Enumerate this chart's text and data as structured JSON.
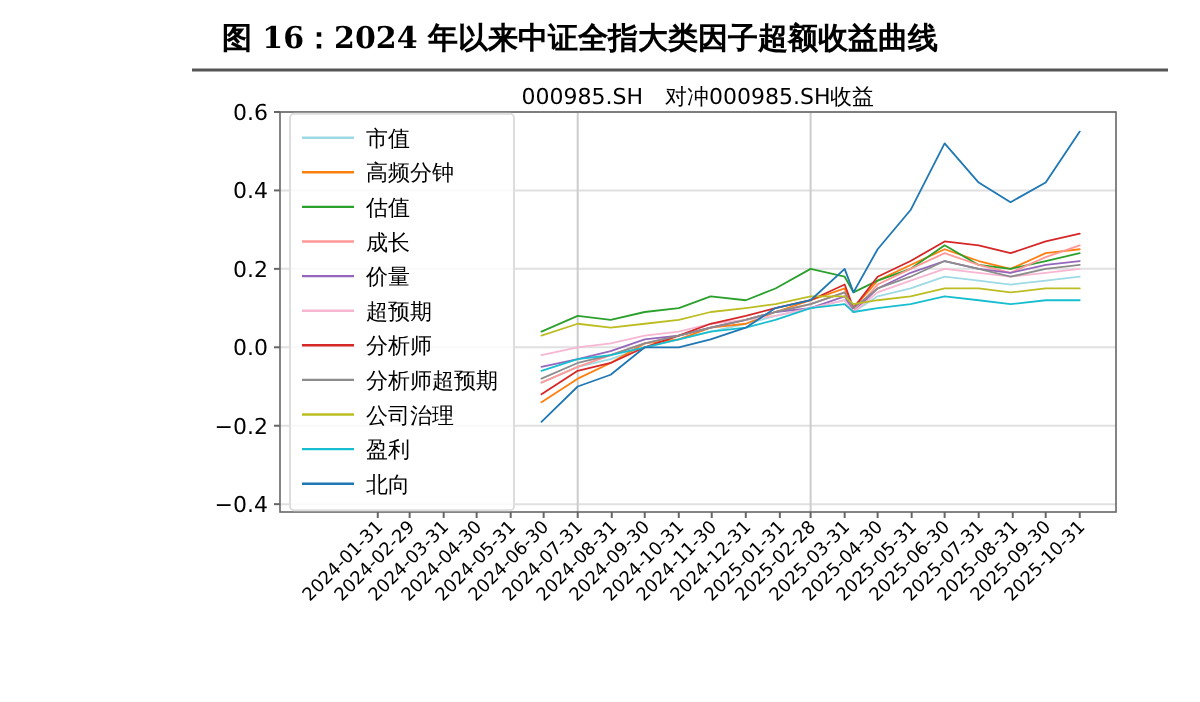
{
  "chart_data": {
    "type": "line",
    "title": "图 16：2024 年以来中证全指大类因子超额收益曲线",
    "subtitle": "000985.SH　对冲000985.SH收益",
    "x": [
      "2024-06-28",
      "2024-07-31",
      "2024-08-30",
      "2024-09-30",
      "2024-10-31",
      "2024-11-29",
      "2024-12-31",
      "2025-01-27",
      "2025-02-28",
      "2025-03-31",
      "2025-04-08",
      "2025-04-30",
      "2025-05-30",
      "2025-06-30",
      "2025-07-31",
      "2025-08-29",
      "2025-09-30",
      "2025-10-31"
    ],
    "xlim": [
      "2023-11-03",
      "2025-12-03"
    ],
    "xticks": [
      "2024-01-31",
      "2024-02-29",
      "2024-03-31",
      "2024-04-30",
      "2024-05-31",
      "2024-06-30",
      "2024-07-31",
      "2024-08-31",
      "2024-09-30",
      "2024-10-31",
      "2024-11-30",
      "2024-12-31",
      "2025-01-31",
      "2025-02-28",
      "2025-03-31",
      "2025-04-30",
      "2025-05-31",
      "2025-06-30",
      "2025-07-31",
      "2025-08-31",
      "2025-09-30",
      "2025-10-31"
    ],
    "ylim": [
      -0.42,
      0.6
    ],
    "yticks": [
      {
        "value": -0.4,
        "label": "−0.4"
      },
      {
        "value": -0.2,
        "label": "−0.2"
      },
      {
        "value": 0,
        "label": "0.0"
      },
      {
        "value": 0.2,
        "label": "0.2"
      },
      {
        "value": 0.4,
        "label": "0.4"
      },
      {
        "value": 0.6,
        "label": "0.6"
      }
    ],
    "grid": "y",
    "legend": "left",
    "marker": "none",
    "line_style": "solid",
    "ref_lines": [
      {
        "axis": "x",
        "value": "2024-07-31",
        "color": "#cccccc"
      },
      {
        "axis": "x",
        "value": "2025-02-28",
        "color": "#cccccc"
      }
    ],
    "series": [
      {
        "name": "市值",
        "color": "#9edae5",
        "values": [
          -0.09,
          -0.05,
          -0.03,
          0.0,
          0.02,
          0.04,
          0.06,
          0.08,
          0.1,
          0.12,
          0.09,
          0.13,
          0.15,
          0.18,
          0.17,
          0.16,
          0.17,
          0.18
        ]
      },
      {
        "name": "高频分钟",
        "color": "#ff7f0e",
        "values": [
          -0.14,
          -0.08,
          -0.04,
          0.01,
          0.02,
          0.05,
          0.06,
          0.09,
          0.12,
          0.15,
          0.1,
          0.17,
          0.21,
          0.25,
          0.22,
          0.2,
          0.24,
          0.25
        ]
      },
      {
        "name": "估值",
        "color": "#2ca02c",
        "values": [
          0.04,
          0.08,
          0.07,
          0.09,
          0.1,
          0.13,
          0.12,
          0.15,
          0.2,
          0.18,
          0.14,
          0.17,
          0.2,
          0.26,
          0.21,
          0.2,
          0.22,
          0.24
        ]
      },
      {
        "name": "成长",
        "color": "#ff9896",
        "values": [
          -0.09,
          -0.05,
          -0.02,
          0.01,
          0.03,
          0.05,
          0.07,
          0.09,
          0.11,
          0.14,
          0.09,
          0.16,
          0.2,
          0.24,
          0.21,
          0.19,
          0.23,
          0.26
        ]
      },
      {
        "name": "价量",
        "color": "#9467bd",
        "values": [
          -0.05,
          -0.03,
          -0.01,
          0.02,
          0.03,
          0.05,
          0.07,
          0.09,
          0.1,
          0.13,
          0.09,
          0.15,
          0.19,
          0.22,
          0.2,
          0.19,
          0.21,
          0.22
        ]
      },
      {
        "name": "超预期",
        "color": "#f7b6d2",
        "values": [
          -0.02,
          0.0,
          0.01,
          0.03,
          0.04,
          0.06,
          0.07,
          0.08,
          0.1,
          0.12,
          0.09,
          0.14,
          0.17,
          0.2,
          0.19,
          0.18,
          0.19,
          0.2
        ]
      },
      {
        "name": "分析师",
        "color": "#d62728",
        "values": [
          -0.12,
          -0.06,
          -0.04,
          0.0,
          0.03,
          0.06,
          0.08,
          0.1,
          0.12,
          0.16,
          0.1,
          0.18,
          0.22,
          0.27,
          0.26,
          0.24,
          0.27,
          0.29
        ]
      },
      {
        "name": "分析师超预期",
        "color": "#8c8c8c",
        "values": [
          -0.08,
          -0.04,
          -0.02,
          0.01,
          0.03,
          0.05,
          0.07,
          0.09,
          0.11,
          0.14,
          0.1,
          0.15,
          0.18,
          0.22,
          0.2,
          0.18,
          0.2,
          0.21
        ]
      },
      {
        "name": "公司治理",
        "color": "#bcbd22",
        "values": [
          0.03,
          0.06,
          0.05,
          0.06,
          0.07,
          0.09,
          0.1,
          0.11,
          0.13,
          0.13,
          0.11,
          0.12,
          0.13,
          0.15,
          0.15,
          0.14,
          0.15,
          0.15
        ]
      },
      {
        "name": "盈利",
        "color": "#17becf",
        "values": [
          -0.06,
          -0.03,
          -0.02,
          0.0,
          0.02,
          0.04,
          0.05,
          0.07,
          0.1,
          0.11,
          0.09,
          0.1,
          0.11,
          0.13,
          0.12,
          0.11,
          0.12,
          0.12
        ]
      },
      {
        "name": "北向",
        "color": "#1f77b4",
        "values": [
          -0.19,
          -0.1,
          -0.07,
          0.0,
          0.0,
          0.02,
          0.05,
          0.1,
          0.12,
          0.2,
          0.14,
          0.25,
          0.35,
          0.52,
          0.42,
          0.37,
          0.42,
          0.55
        ]
      }
    ]
  }
}
